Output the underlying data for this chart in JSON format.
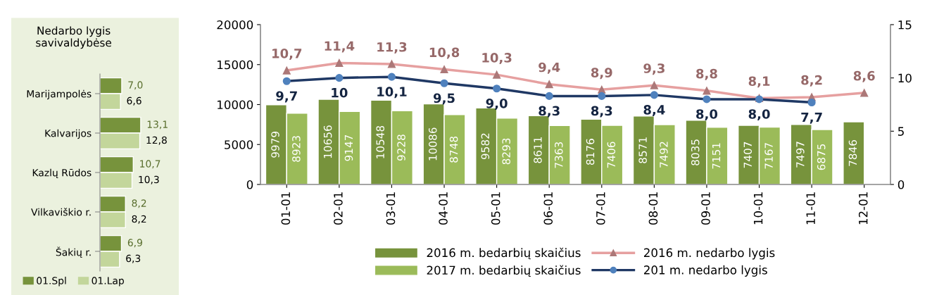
{
  "chart_data": [
    {
      "type": "bar",
      "orientation": "horizontal",
      "title": "Nedarbo lygis\nsavivaldybėse",
      "categories": [
        "Marijampolės",
        "Kalvarijos",
        "Kazlų Rūdos",
        "Vilkaviškio r.",
        "Šakių r."
      ],
      "series": [
        {
          "name": "01.Spl",
          "color": "#77933c",
          "values": [
            7.0,
            13.1,
            10.7,
            8.2,
            6.9
          ],
          "value_labels": [
            "7,0",
            "13,1",
            "10,7",
            "8,2",
            "6,9"
          ]
        },
        {
          "name": "01.Lap",
          "color": "#c3d69b",
          "values": [
            6.6,
            12.8,
            10.3,
            8.2,
            6.3
          ],
          "value_labels": [
            "6,6",
            "12,8",
            "10,3",
            "8,2",
            "6,3"
          ]
        }
      ],
      "legend": "bottom",
      "grid": false
    },
    {
      "type": "bar",
      "categories": [
        "01-01",
        "02-01",
        "03-01",
        "04-01",
        "05-01",
        "06-01",
        "07-01",
        "08-01",
        "09-01",
        "10-01",
        "11-01",
        "12-01"
      ],
      "series": [
        {
          "name": "2016 m. bedarbių skaičius",
          "color": "#77933c",
          "values": [
            9979,
            10656,
            10548,
            10086,
            9582,
            8611,
            8176,
            8571,
            8035,
            7407,
            7497,
            7846
          ]
        },
        {
          "name": "2017 m. bedarbių skaičius",
          "color": "#9bbb59",
          "values": [
            8923,
            9147,
            9228,
            8748,
            8293,
            7363,
            7406,
            7492,
            7151,
            7167,
            6875,
            null
          ]
        },
        {
          "name": "2016 m. nedarbo lygis",
          "type": "line",
          "axis": "y2",
          "marker": "triangle",
          "color": "#e6a0a0",
          "values": [
            10.7,
            11.4,
            11.3,
            10.8,
            10.3,
            9.4,
            8.9,
            9.3,
            8.8,
            8.1,
            8.2,
            8.6
          ],
          "value_labels": [
            "10,7",
            "11,4",
            "11,3",
            "10,8",
            "10,3",
            "9,4",
            "8,9",
            "9,3",
            "8,8",
            "8,1",
            "8,2",
            "8,6"
          ]
        },
        {
          "name": "201 m. nedarbo lygis",
          "type": "line",
          "axis": "y2",
          "marker": "circle",
          "color": "#1f3864",
          "values": [
            9.7,
            10,
            10.1,
            9.5,
            9.0,
            8.3,
            8.3,
            8.4,
            8.0,
            8.0,
            7.7,
            null
          ],
          "value_labels": [
            "9,7",
            "10",
            "10,1",
            "9,5",
            "9,0",
            "8,3",
            "8,3",
            "8,4",
            "8,0",
            "8,0",
            "7,7",
            null
          ]
        }
      ],
      "ylim": [
        0,
        20000
      ],
      "yticks": [
        0,
        5000,
        10000,
        15000,
        20000
      ],
      "y2lim": [
        0,
        15
      ],
      "y2ticks": [
        0,
        5,
        10,
        15
      ],
      "data_labels": true,
      "legend": "bottom",
      "grid": false
    }
  ]
}
